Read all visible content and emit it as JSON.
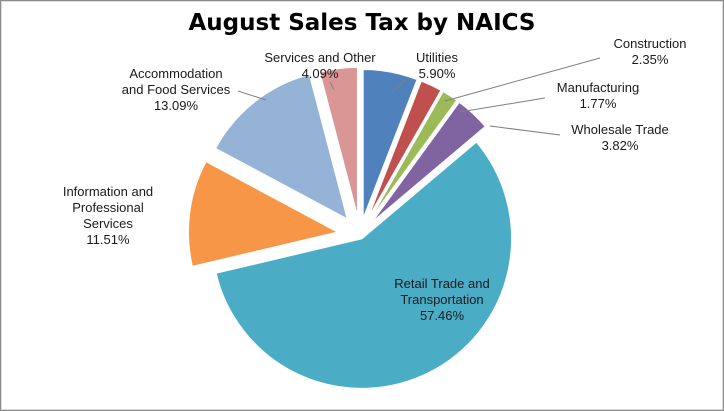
{
  "chart_data": {
    "type": "pie",
    "title": "August Sales Tax by NAICS",
    "categories": [
      "Utilities",
      "Construction",
      "Manufacturing",
      "Wholesale Trade",
      "Retail Trade and Transportation",
      "Information and Professional Services",
      "Accommodation and Food Services",
      "Services and Other"
    ],
    "values": [
      5.9,
      2.35,
      1.77,
      3.82,
      57.46,
      11.51,
      13.09,
      4.09
    ],
    "value_labels": [
      "5.90%",
      "2.35%",
      "1.77%",
      "3.82%",
      "57.46%",
      "11.51%",
      "13.09%",
      "4.09%"
    ],
    "colors": [
      "#4f81bd",
      "#c0504d",
      "#9bbb59",
      "#8064a2",
      "#4bacc6",
      "#f79646",
      "#95b3d7",
      "#d99694"
    ],
    "exploded": true,
    "legend": "none"
  }
}
